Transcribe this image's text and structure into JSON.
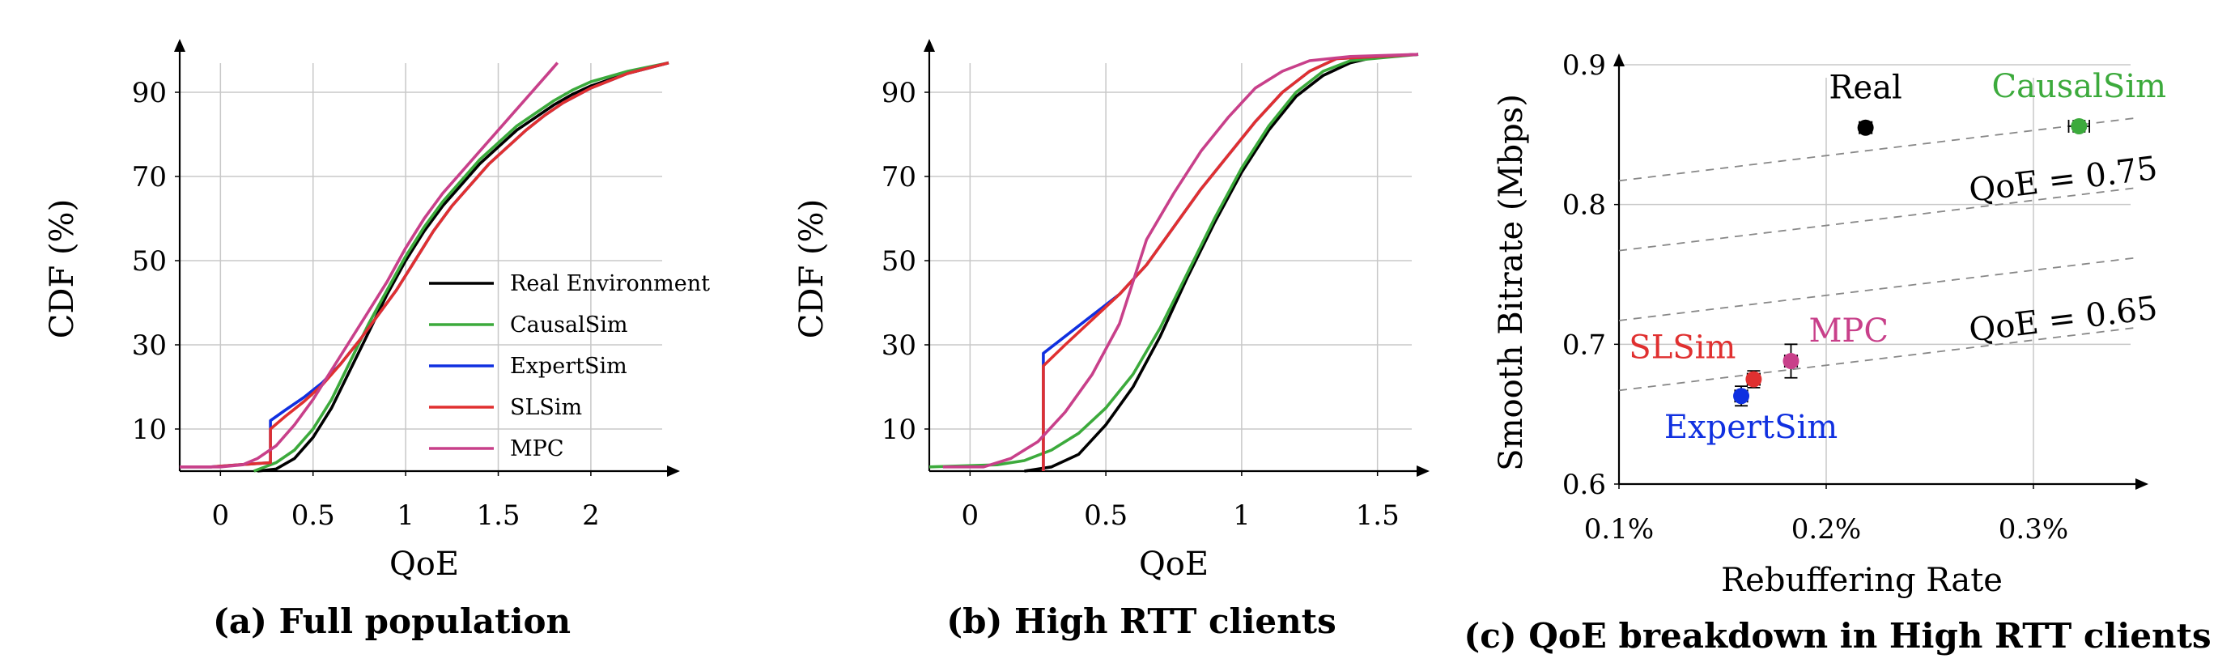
{
  "chart_data": [
    {
      "type": "line",
      "caption": "(a) Full population",
      "xlabel": "QoE",
      "ylabel": "CDF (%)",
      "xlim": [
        -0.22,
        2.42
      ],
      "ylim": [
        0,
        100
      ],
      "xticks": [
        0,
        0.5,
        1,
        1.5,
        2
      ],
      "xtick_labels": [
        "0",
        "0.5",
        "1",
        "1.5",
        "2"
      ],
      "yticks": [
        10,
        30,
        50,
        70,
        90
      ],
      "ytick_labels": [
        "10",
        "30",
        "50",
        "70",
        "90"
      ],
      "grid": true,
      "legend": "center-right",
      "series": [
        {
          "name": "Real Environment",
          "color": "#000000",
          "points": [
            [
              0.2,
              0
            ],
            [
              0.3,
              0.5
            ],
            [
              0.4,
              3
            ],
            [
              0.5,
              8
            ],
            [
              0.6,
              15
            ],
            [
              0.7,
              24
            ],
            [
              0.8,
              33
            ],
            [
              0.9,
              42
            ],
            [
              1.0,
              50
            ],
            [
              1.1,
              57
            ],
            [
              1.2,
              63
            ],
            [
              1.3,
              68
            ],
            [
              1.4,
              73
            ],
            [
              1.5,
              77
            ],
            [
              1.6,
              81
            ],
            [
              1.7,
              84
            ],
            [
              1.8,
              87
            ],
            [
              1.9,
              89.5
            ],
            [
              2.0,
              91.5
            ],
            [
              2.2,
              94.5
            ],
            [
              2.42,
              97
            ]
          ]
        },
        {
          "name": "CausalSim",
          "color": "#3caa3c",
          "points": [
            [
              0.18,
              0
            ],
            [
              0.3,
              2
            ],
            [
              0.4,
              5
            ],
            [
              0.5,
              10
            ],
            [
              0.6,
              17
            ],
            [
              0.7,
              26
            ],
            [
              0.8,
              35
            ],
            [
              0.9,
              43
            ],
            [
              1.0,
              51
            ],
            [
              1.1,
              58
            ],
            [
              1.2,
              64
            ],
            [
              1.3,
              69
            ],
            [
              1.4,
              74
            ],
            [
              1.5,
              78
            ],
            [
              1.6,
              82
            ],
            [
              1.7,
              85
            ],
            [
              1.8,
              88
            ],
            [
              1.9,
              90.5
            ],
            [
              2.0,
              92.5
            ],
            [
              2.2,
              95
            ],
            [
              2.42,
              97
            ]
          ]
        },
        {
          "name": "ExpertSim",
          "color": "#1030e0",
          "points": [
            [
              -0.22,
              1
            ],
            [
              -0.05,
              1
            ],
            [
              0.1,
              1.5
            ],
            [
              0.27,
              2
            ],
            [
              0.27,
              12
            ],
            [
              0.35,
              14.5
            ],
            [
              0.45,
              17.5
            ],
            [
              0.55,
              21
            ],
            [
              0.65,
              25.5
            ],
            [
              0.75,
              31
            ],
            [
              0.85,
              37
            ],
            [
              0.95,
              43
            ],
            [
              1.05,
              50
            ],
            [
              1.15,
              57
            ],
            [
              1.25,
              63
            ],
            [
              1.35,
              68
            ],
            [
              1.45,
              73
            ],
            [
              1.55,
              77
            ],
            [
              1.65,
              81
            ],
            [
              1.75,
              84.5
            ],
            [
              1.85,
              87.5
            ],
            [
              2.0,
              91
            ],
            [
              2.2,
              94.5
            ],
            [
              2.42,
              97
            ]
          ]
        },
        {
          "name": "SLSim",
          "color": "#e03030",
          "points": [
            [
              -0.22,
              1
            ],
            [
              -0.05,
              1
            ],
            [
              0.1,
              1.5
            ],
            [
              0.27,
              2
            ],
            [
              0.27,
              10
            ],
            [
              0.35,
              13
            ],
            [
              0.45,
              16.5
            ],
            [
              0.55,
              20.5
            ],
            [
              0.65,
              25.5
            ],
            [
              0.75,
              31
            ],
            [
              0.85,
              37
            ],
            [
              0.95,
              43
            ],
            [
              1.05,
              50
            ],
            [
              1.15,
              57
            ],
            [
              1.25,
              63
            ],
            [
              1.35,
              68
            ],
            [
              1.45,
              73
            ],
            [
              1.55,
              77
            ],
            [
              1.65,
              81
            ],
            [
              1.75,
              84.5
            ],
            [
              1.85,
              87.5
            ],
            [
              2.0,
              91
            ],
            [
              2.2,
              94.5
            ],
            [
              2.42,
              97
            ]
          ]
        },
        {
          "name": "MPC",
          "color": "#c8408a",
          "points": [
            [
              -0.22,
              1
            ],
            [
              0.0,
              1
            ],
            [
              0.12,
              1.5
            ],
            [
              0.2,
              3
            ],
            [
              0.3,
              6
            ],
            [
              0.4,
              11
            ],
            [
              0.5,
              17
            ],
            [
              0.6,
              24
            ],
            [
              0.7,
              31
            ],
            [
              0.8,
              38
            ],
            [
              0.9,
              45
            ],
            [
              1.0,
              53
            ],
            [
              1.1,
              60
            ],
            [
              1.2,
              66
            ],
            [
              1.3,
              71
            ],
            [
              1.4,
              76
            ],
            [
              1.5,
              81
            ],
            [
              1.6,
              86
            ],
            [
              1.7,
              91
            ],
            [
              1.78,
              95
            ],
            [
              1.82,
              97
            ]
          ]
        }
      ]
    },
    {
      "type": "line",
      "caption": "(b) High RTT clients",
      "xlabel": "QoE",
      "ylabel": "CDF (%)",
      "xlim": [
        -0.15,
        1.65
      ],
      "ylim": [
        0,
        100
      ],
      "xticks": [
        0,
        0.5,
        1,
        1.5
      ],
      "xtick_labels": [
        "0",
        "0.5",
        "1",
        "1.5"
      ],
      "yticks": [
        10,
        30,
        50,
        70,
        90
      ],
      "ytick_labels": [
        "10",
        "30",
        "50",
        "70",
        "90"
      ],
      "grid": true,
      "series": [
        {
          "name": "Real Environment",
          "color": "#000000",
          "points": [
            [
              0.2,
              0
            ],
            [
              0.3,
              1
            ],
            [
              0.4,
              4
            ],
            [
              0.5,
              11
            ],
            [
              0.6,
              20
            ],
            [
              0.7,
              32
            ],
            [
              0.8,
              46
            ],
            [
              0.9,
              59
            ],
            [
              1.0,
              71
            ],
            [
              1.1,
              81
            ],
            [
              1.2,
              89
            ],
            [
              1.3,
              94
            ],
            [
              1.4,
              97
            ],
            [
              1.5,
              98.5
            ],
            [
              1.65,
              99
            ]
          ]
        },
        {
          "name": "CausalSim",
          "color": "#3caa3c",
          "points": [
            [
              -0.15,
              1
            ],
            [
              0.1,
              1.5
            ],
            [
              0.2,
              2.5
            ],
            [
              0.3,
              5
            ],
            [
              0.4,
              9
            ],
            [
              0.5,
              15
            ],
            [
              0.6,
              23
            ],
            [
              0.7,
              34
            ],
            [
              0.8,
              47
            ],
            [
              0.9,
              60
            ],
            [
              1.0,
              72
            ],
            [
              1.1,
              82
            ],
            [
              1.2,
              90
            ],
            [
              1.3,
              95
            ],
            [
              1.4,
              97.5
            ],
            [
              1.65,
              99
            ]
          ]
        },
        {
          "name": "ExpertSim",
          "color": "#1030e0",
          "points": [
            [
              0.27,
              0
            ],
            [
              0.27,
              28
            ],
            [
              0.35,
              32
            ],
            [
              0.45,
              37
            ],
            [
              0.55,
              42
            ],
            [
              0.65,
              49
            ],
            [
              0.75,
              58
            ],
            [
              0.85,
              67
            ],
            [
              0.95,
              75
            ],
            [
              1.05,
              83
            ],
            [
              1.15,
              90
            ],
            [
              1.25,
              95
            ],
            [
              1.35,
              98
            ],
            [
              1.65,
              99
            ]
          ]
        },
        {
          "name": "SLSim",
          "color": "#e03030",
          "points": [
            [
              0.27,
              0
            ],
            [
              0.27,
              25
            ],
            [
              0.35,
              30
            ],
            [
              0.45,
              36
            ],
            [
              0.55,
              42
            ],
            [
              0.65,
              49
            ],
            [
              0.75,
              58
            ],
            [
              0.85,
              67
            ],
            [
              0.95,
              75
            ],
            [
              1.05,
              83
            ],
            [
              1.15,
              90
            ],
            [
              1.25,
              95
            ],
            [
              1.35,
              98
            ],
            [
              1.65,
              99
            ]
          ]
        },
        {
          "name": "MPC",
          "color": "#c8408a",
          "points": [
            [
              -0.1,
              1
            ],
            [
              0.05,
              1
            ],
            [
              0.15,
              3
            ],
            [
              0.25,
              7
            ],
            [
              0.35,
              14
            ],
            [
              0.45,
              23
            ],
            [
              0.55,
              35
            ],
            [
              0.6,
              45
            ],
            [
              0.65,
              55
            ],
            [
              0.75,
              66
            ],
            [
              0.85,
              76
            ],
            [
              0.95,
              84
            ],
            [
              1.05,
              91
            ],
            [
              1.15,
              95
            ],
            [
              1.25,
              97.5
            ],
            [
              1.4,
              98.5
            ],
            [
              1.65,
              99
            ]
          ]
        }
      ]
    },
    {
      "type": "scatter",
      "caption": "(c) QoE breakdown in High RTT clients",
      "xlabel": "Rebuffering Rate",
      "ylabel": "Smooth Bitrate (Mbps)",
      "xlim": [
        0.1,
        0.35
      ],
      "ylim": [
        0.6,
        0.9
      ],
      "xticks": [
        0.1,
        0.2,
        0.3
      ],
      "xtick_labels": [
        "0.1%",
        "0.2%",
        "0.3%"
      ],
      "yticks": [
        0.6,
        0.7,
        0.8,
        0.9
      ],
      "ytick_labels": [
        "0.6",
        "0.7",
        "0.8",
        "0.9"
      ],
      "grid": true,
      "points": [
        {
          "label": "Real",
          "x": 0.219,
          "y": 0.855,
          "xerr": 0.003,
          "yerr": 0.004,
          "color": "#000000",
          "label_pos": "above"
        },
        {
          "label": "CausalSim",
          "x": 0.322,
          "y": 0.856,
          "xerr": 0.005,
          "yerr": 0.004,
          "color": "#3caa3c",
          "label_pos": "above"
        },
        {
          "label": "SLSim",
          "x": 0.165,
          "y": 0.675,
          "xerr": 0.003,
          "yerr": 0.006,
          "color": "#e03030",
          "label_pos": "above-left"
        },
        {
          "label": "MPC",
          "x": 0.183,
          "y": 0.688,
          "xerr": 0.003,
          "yerr": 0.012,
          "color": "#c8408a",
          "label_pos": "above-right"
        },
        {
          "label": "ExpertSim",
          "x": 0.159,
          "y": 0.663,
          "xerr": 0.003,
          "yerr": 0.007,
          "color": "#1030e0",
          "label_pos": "below"
        }
      ],
      "iso_lines": [
        {
          "y_at_xmin": 0.817,
          "y_at_xmax": 0.862,
          "label": ""
        },
        {
          "y_at_xmin": 0.767,
          "y_at_xmax": 0.812,
          "label": "QoE = 0.75"
        },
        {
          "y_at_xmin": 0.717,
          "y_at_xmax": 0.762,
          "label": ""
        },
        {
          "y_at_xmin": 0.667,
          "y_at_xmax": 0.712,
          "label": "QoE = 0.65"
        }
      ]
    }
  ]
}
